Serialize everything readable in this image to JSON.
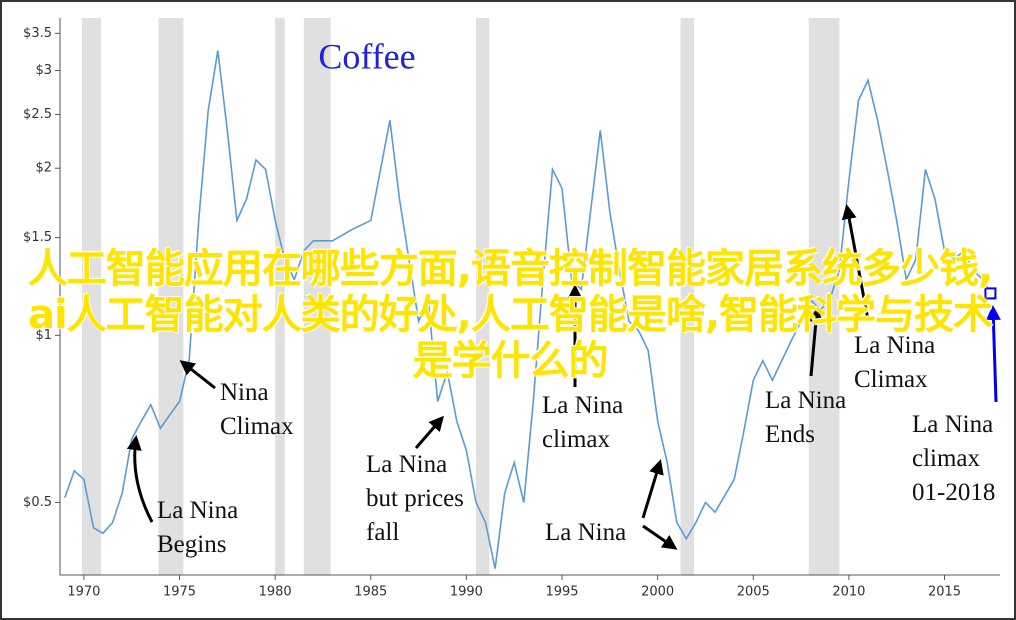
{
  "chart_data": {
    "type": "line",
    "title": "Coffee",
    "title_color": "#2020e0",
    "log_scale": true,
    "xlim": [
      1968.75,
      2017.9
    ],
    "ylim": [
      0.37,
      3.73
    ],
    "xticks": [
      1970,
      1975,
      1980,
      1985,
      1990,
      1995,
      2000,
      2005,
      2010,
      2015
    ],
    "yticks": [
      {
        "value": 0.5,
        "label": "$0.5"
      },
      {
        "value": 1,
        "label": "$1"
      },
      {
        "value": 1.5,
        "label": "$1.5"
      },
      {
        "value": 2,
        "label": "$2"
      },
      {
        "value": 2.5,
        "label": "$2.5"
      },
      {
        "value": 3,
        "label": "$3"
      },
      {
        "value": 3.5,
        "label": "$3.5"
      }
    ],
    "shaded_periods": [
      [
        1969.9,
        1970.9
      ],
      [
        1973.9,
        1975.2
      ],
      [
        1980.0,
        1980.5
      ],
      [
        1981.5,
        1982.9
      ],
      [
        1990.5,
        1991.2
      ],
      [
        2001.2,
        2001.9
      ],
      [
        2007.9,
        2009.5
      ]
    ],
    "x": [
      1969,
      1969.5,
      1970,
      1970.5,
      1971,
      1971.5,
      1972,
      1972.5,
      1973,
      1973.5,
      1974,
      1974.5,
      1975,
      1975.5,
      1976,
      1976.5,
      1977,
      1977.5,
      1978,
      1978.5,
      1979,
      1979.5,
      1980,
      1980.5,
      1981,
      1981.5,
      1982,
      1983,
      1984,
      1985,
      1986,
      1986.5,
      1987,
      1987.5,
      1988,
      1988.5,
      1989,
      1989.5,
      1990,
      1990.5,
      1991,
      1991.5,
      1992,
      1992.5,
      1993,
      1993.5,
      1994,
      1994.5,
      1995,
      1995.5,
      1996,
      1997,
      1997.5,
      1998,
      1998.5,
      1999,
      1999.5,
      2000,
      2000.5,
      2001,
      2001.5,
      2002,
      2002.5,
      2003,
      2004,
      2004.5,
      2005,
      2005.5,
      2006,
      2007,
      2007.5,
      2008,
      2008.5,
      2009,
      2009.5,
      2010,
      2010.5,
      2011,
      2011.5,
      2012,
      2012.5,
      2013,
      2013.5,
      2014,
      2014.5,
      2015,
      2015.5,
      2016,
      2016.5,
      2017,
      2017.3
    ],
    "series": [
      {
        "name": "Coffee",
        "color": "#5b9bd5",
        "values": [
          0.51,
          0.57,
          0.55,
          0.45,
          0.44,
          0.46,
          0.52,
          0.65,
          0.7,
          0.75,
          0.68,
          0.72,
          0.76,
          0.9,
          1.61,
          2.54,
          3.26,
          2.34,
          1.61,
          1.76,
          2.07,
          1.99,
          1.61,
          1.37,
          1.26,
          1.42,
          1.48,
          1.48,
          1.55,
          1.61,
          2.44,
          1.76,
          1.37,
          1.06,
          1.16,
          0.76,
          0.86,
          0.7,
          0.62,
          0.5,
          0.46,
          0.38,
          0.52,
          0.59,
          0.5,
          0.76,
          1.26,
          1.99,
          1.84,
          1.26,
          1.21,
          2.34,
          1.67,
          1.31,
          1.06,
          1.02,
          0.94,
          0.7,
          0.59,
          0.46,
          0.43,
          0.46,
          0.5,
          0.48,
          0.55,
          0.67,
          0.83,
          0.9,
          0.83,
          0.98,
          1.06,
          1.16,
          1.11,
          1.16,
          1.31,
          1.9,
          2.65,
          2.88,
          2.44,
          1.99,
          1.61,
          1.26,
          1.37,
          1.99,
          1.76,
          1.42,
          1.37,
          1.42,
          1.31,
          1.26,
          1.21
        ]
      }
    ],
    "highlight_point": {
      "x": 2017.4,
      "y": 1.19,
      "color": "#0000ee"
    },
    "annotations": [
      {
        "lines": [
          "La Nina",
          "Begins"
        ]
      },
      {
        "lines": [
          "Nina",
          "Climax"
        ]
      },
      {
        "lines": [
          "La Nina",
          "but prices",
          "fall"
        ]
      },
      {
        "lines": [
          "La Nina",
          "climax"
        ]
      },
      {
        "lines": [
          "La Nina"
        ]
      },
      {
        "lines": [
          "La Nina",
          "Ends"
        ]
      },
      {
        "lines": [
          "La Nina",
          "Climax"
        ]
      },
      {
        "lines": [
          "La Nina",
          "climax",
          "01-2018"
        ],
        "color": "#0000ee"
      }
    ]
  },
  "overlay_text": "人工智能应用在哪些方面,语音控制智能家居系统多少钱,ai人工智能对人类的好处,人工智能是啥,智能科学与技术是学什么的"
}
